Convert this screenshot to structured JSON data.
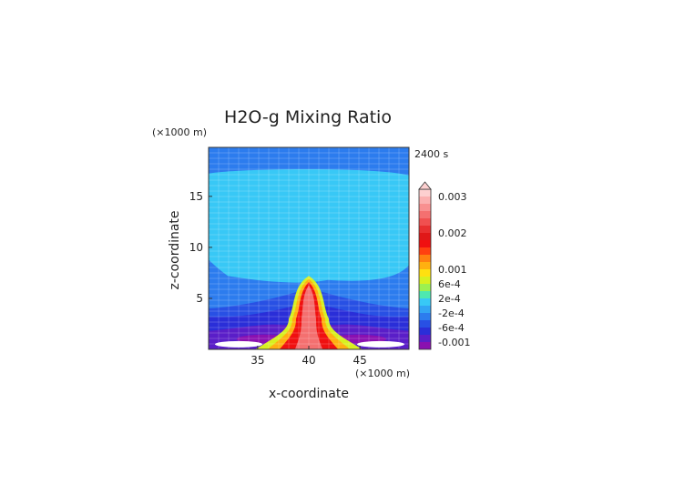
{
  "chart_data": {
    "type": "heatmap",
    "title": "H2O-g Mixing Ratio",
    "time_label": "2400 s",
    "xlabel": "x-coordinate",
    "ylabel": "z-coordinate",
    "x_unit": "(×1000 m)",
    "y_unit": "(×1000 m)",
    "xlim": [
      30.2,
      49.8
    ],
    "ylim": [
      0,
      19.8
    ],
    "x_ticks": [
      35,
      40,
      45
    ],
    "y_ticks": [
      5,
      10,
      15
    ],
    "grid": true,
    "colorbar": {
      "labels": [
        "0.003",
        "0.002",
        "0.001",
        "6e-4",
        "2e-4",
        "-2e-4",
        "-6e-4",
        "-0.001"
      ],
      "label_values": [
        0.003,
        0.002,
        0.001,
        0.0006,
        0.0002,
        -0.0002,
        -0.0006,
        -0.001
      ],
      "levels": [
        -0.0012,
        -0.001,
        -0.0008,
        -0.0006,
        -0.0004,
        -0.0002,
        0,
        0.0002,
        0.0004,
        0.0006,
        0.0008,
        0.001,
        0.0012,
        0.0014,
        0.0016,
        0.0018,
        0.002,
        0.0022,
        0.0024,
        0.0026,
        0.0028,
        0.003
      ],
      "colors": [
        "#8a10b0",
        "#5a1ec8",
        "#2a2ed8",
        "#2850e4",
        "#2c7cee",
        "#32a4f4",
        "#38c8f6",
        "#4ee8b0",
        "#9cf050",
        "#d8f020",
        "#ffe010",
        "#ffb010",
        "#ff8010",
        "#ff4010",
        "#f01010",
        "#e01818",
        "#e83030",
        "#f05050",
        "#f47070",
        "#f89090",
        "#fbb0b0",
        "#fdd0d0"
      ]
    },
    "regions": [
      {
        "name": "background",
        "value": -0.0003
      },
      {
        "name": "upper-plateau",
        "value": 0.0001
      },
      {
        "name": "lower-layer-1",
        "value": -0.0005
      },
      {
        "name": "lower-layer-2",
        "value": -0.0007
      },
      {
        "name": "near-surface",
        "value": -0.0009
      },
      {
        "name": "surface-minimum",
        "value": -0.0011
      },
      {
        "name": "plume-edge",
        "value": 0.0006
      },
      {
        "name": "plume-outer",
        "value": 0.0011
      },
      {
        "name": "plume-middle",
        "value": 0.0017
      },
      {
        "name": "plume-core",
        "value": 0.0024
      }
    ]
  },
  "colors": {
    "plot_border": "#333333",
    "grid": "#ffffff",
    "text": "#222222"
  }
}
